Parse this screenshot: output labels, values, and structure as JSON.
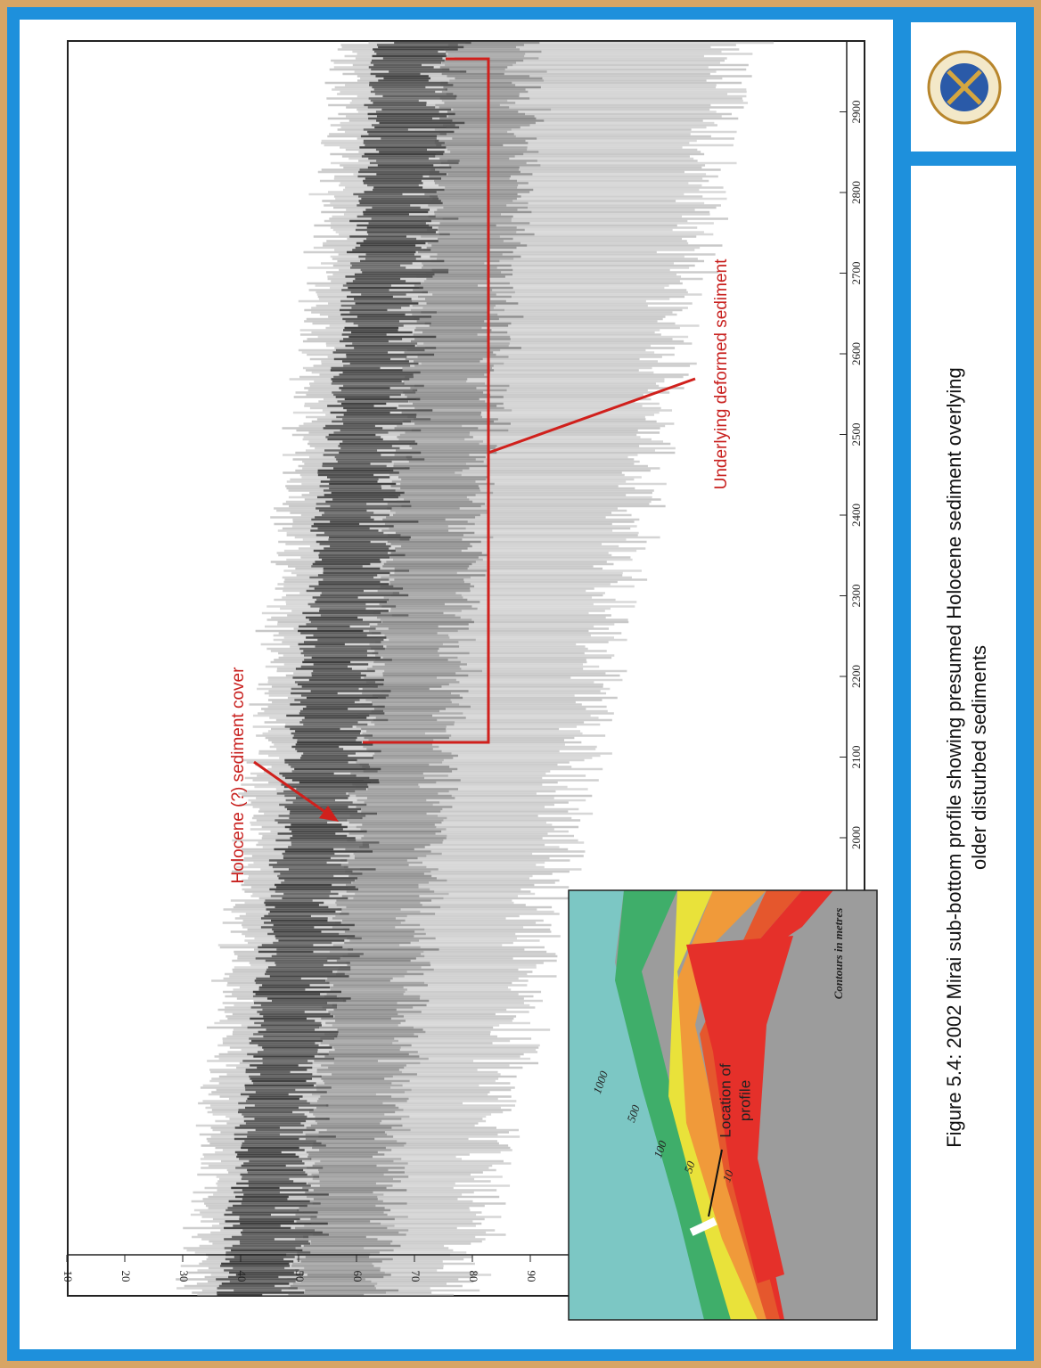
{
  "figure": {
    "annotations": [
      "Holocene (?) sediment cover",
      "Underlying deformed sediment"
    ],
    "depth_ticks": [
      10,
      20,
      30,
      40,
      50,
      60,
      70,
      80,
      90
    ],
    "distance_ticks": [
      2000,
      2100,
      2200,
      2300,
      2400,
      2500,
      2600,
      2700,
      2800,
      2900
    ],
    "inset": {
      "location_label": [
        "Location of",
        "profile"
      ],
      "contours_note": "Contours in metres",
      "contour_labels": [
        1000,
        500,
        100,
        50,
        10
      ]
    }
  },
  "caption": {
    "lines": [
      "Figure 5.4: 2002 Mirai sub-bottom profile showing presumed Holocene sediment overlying",
      "older disturbed sediments"
    ]
  }
}
